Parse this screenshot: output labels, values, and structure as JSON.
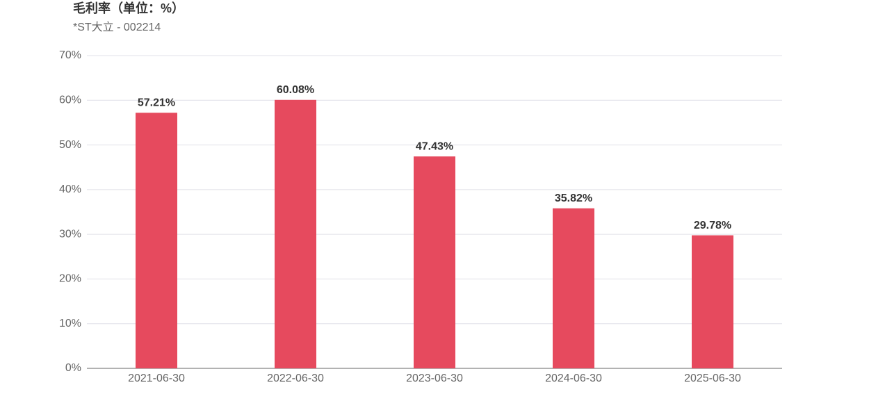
{
  "chart_data": {
    "type": "bar",
    "title": "毛利率（单位：%）",
    "subtitle": "*ST大立 - 002214",
    "categories": [
      "2021-06-30",
      "2022-06-30",
      "2023-06-30",
      "2024-06-30",
      "2025-06-30"
    ],
    "values": [
      57.21,
      60.08,
      47.43,
      35.82,
      29.78
    ],
    "value_labels": [
      "57.21%",
      "60.08%",
      "47.43%",
      "35.82%",
      "29.78%"
    ],
    "color": "#e64a5e",
    "ylim": [
      0,
      70
    ],
    "yticks": [
      {
        "value": 0,
        "label": "0%"
      },
      {
        "value": 10,
        "label": "10%"
      },
      {
        "value": 20,
        "label": "20%"
      },
      {
        "value": 30,
        "label": "30%"
      },
      {
        "value": 40,
        "label": "40%"
      },
      {
        "value": 50,
        "label": "50%"
      },
      {
        "value": 60,
        "label": "60%"
      },
      {
        "value": 70,
        "label": "70%"
      }
    ],
    "grid": true
  }
}
